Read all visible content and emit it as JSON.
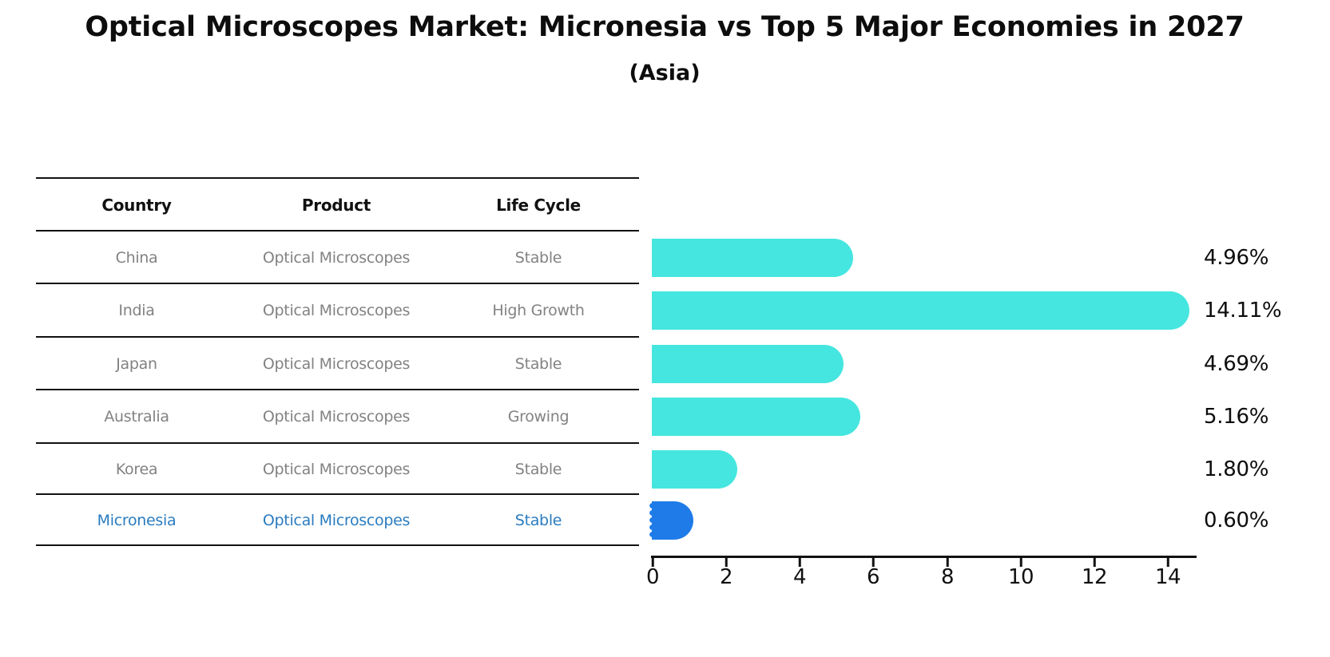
{
  "header": {
    "title": "Optical Microscopes Market: Micronesia vs Top 5 Major Economies in 2027",
    "subtitle": "(Asia)"
  },
  "table": {
    "columns": [
      "Country",
      "Product",
      "Life Cycle"
    ],
    "rows": [
      {
        "country": "China",
        "product": "Optical Microscopes",
        "life_cycle": "Stable",
        "highlight": false
      },
      {
        "country": "India",
        "product": "Optical Microscopes",
        "life_cycle": "High Growth",
        "highlight": false
      },
      {
        "country": "Japan",
        "product": "Optical Microscopes",
        "life_cycle": "Stable",
        "highlight": false
      },
      {
        "country": "Australia",
        "product": "Optical Microscopes",
        "life_cycle": "Growing",
        "highlight": false
      },
      {
        "country": "Korea",
        "product": "Optical Microscopes",
        "life_cycle": "Stable",
        "highlight": false
      },
      {
        "country": "Micronesia",
        "product": "Optical Microscopes",
        "life_cycle": "Stable",
        "highlight": true
      }
    ]
  },
  "chart_data": {
    "type": "bar",
    "orientation": "horizontal",
    "title": "Optical Microscopes Market: Micronesia vs Top 5 Major Economies in 2027",
    "subtitle": "(Asia)",
    "categories": [
      "China",
      "India",
      "Japan",
      "Australia",
      "Korea",
      "Micronesia"
    ],
    "values": [
      4.96,
      14.11,
      4.69,
      5.16,
      1.8,
      0.6
    ],
    "value_labels": [
      "4.96%",
      "14.11%",
      "4.69%",
      "5.16%",
      "1.80%",
      "0.60%"
    ],
    "x_ticks": [
      "0",
      "2",
      "4",
      "6",
      "8",
      "10",
      "12",
      "14"
    ],
    "xlim": [
      0,
      14.8
    ],
    "xlabel": "",
    "ylabel": "",
    "grid": false,
    "legend": false,
    "bar_color": "#45E6DF",
    "highlight_color": "#1E7BE8",
    "highlight_index": 5
  },
  "colors": {
    "bar_cyan": "#45E6DF",
    "bar_blue": "#1E7BE8",
    "row_text_gray": "#828282",
    "highlight_text_blue": "#2A7CC0",
    "line_black": "#111111"
  }
}
